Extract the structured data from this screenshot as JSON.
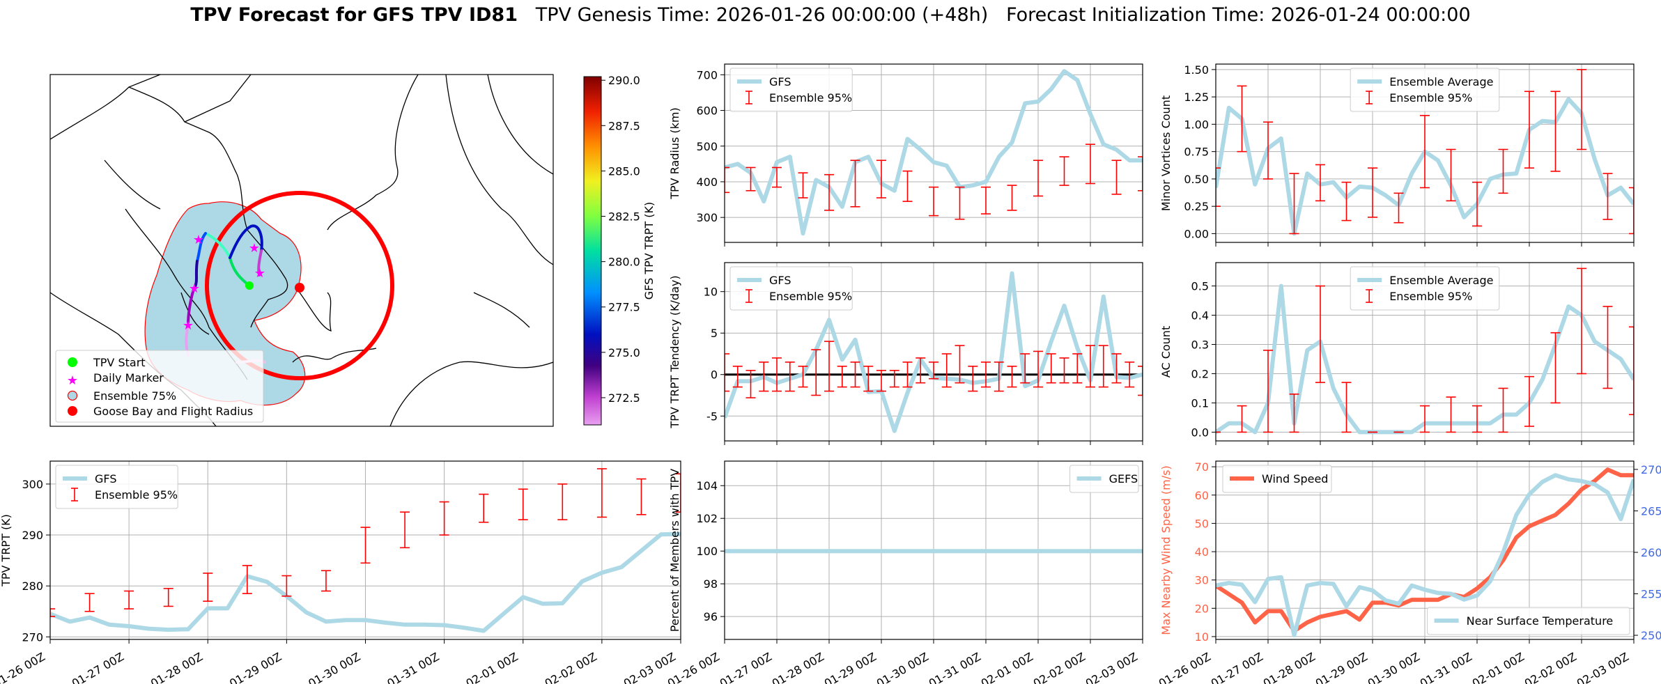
{
  "title": {
    "bold": "TPV Forecast for GFS TPV ID81",
    "genesis": "TPV Genesis Time: 2026-01-26 00:00:00 (+48h)",
    "init": "Forecast Initialization Time: 2026-01-24 00:00:00"
  },
  "colors": {
    "gfs": "#add8e6",
    "ensemble": "#ff0000",
    "wind": "#ff6347",
    "temperature_axis": "#4169e1",
    "wind_axis": "#ff6347",
    "grid": "#b0b0b0",
    "ocean": "#add8e6",
    "flight_radius": "#ff0000",
    "goose_bay": "#ff0000",
    "tpv_start": "#00ff00",
    "daily_marker": "#ff00ff"
  },
  "date_ticks": [
    "01-26 00Z",
    "01-27 00Z",
    "01-28 00Z",
    "01-29 00Z",
    "01-30 00Z",
    "01-31 00Z",
    "02-01 00Z",
    "02-02 00Z",
    "02-03 00Z"
  ],
  "map": {
    "legend": [
      "TPV Start",
      "Daily Marker",
      "Ensemble 75%",
      "Goose Bay and Flight Radius"
    ],
    "colorbar_label": "GFS TPV TRPT (K)",
    "colorbar_ticks": [
      "290.0",
      "287.5",
      "285.0",
      "282.5",
      "280.0",
      "277.5",
      "275.0",
      "272.5"
    ],
    "colorbar_range": [
      271.0,
      290.2
    ]
  },
  "chart_data": [
    {
      "type": "line",
      "name": "trpt",
      "ylabel": "TPV TRPT (K)",
      "ylim": [
        269.5,
        304.5
      ],
      "yticks": [
        270,
        280,
        290,
        300
      ],
      "x_range": [
        0,
        8
      ],
      "series": [
        {
          "name": "GFS",
          "x": [
            0,
            0.25,
            0.5,
            0.75,
            1,
            1.25,
            1.5,
            1.75,
            2,
            2.25,
            2.5,
            2.75,
            3,
            3.25,
            3.5,
            3.75,
            4,
            4.25,
            4.5,
            4.75,
            5,
            5.25,
            5.5,
            5.75,
            6,
            6.25,
            6.5,
            6.75,
            7,
            7.25,
            7.5,
            7.75,
            8
          ],
          "values": [
            274.5,
            273.0,
            273.8,
            272.4,
            272.1,
            271.6,
            271.4,
            271.5,
            275.6,
            275.6,
            281.9,
            280.8,
            278.0,
            274.8,
            273.0,
            273.3,
            273.3,
            272.8,
            272.4,
            272.4,
            272.3,
            271.8,
            271.2,
            274.5,
            277.8,
            276.5,
            276.6,
            280.9,
            282.6,
            283.7,
            286.9,
            290.1,
            290.2
          ]
        }
      ],
      "ensemble95": {
        "name": "Ensemble 95%",
        "x": [
          0,
          0.5,
          1,
          1.5,
          2,
          2.5,
          3,
          3.5,
          4,
          4.5,
          5,
          5.5,
          6,
          6.5,
          7,
          7.5,
          8
        ],
        "low": [
          274.0,
          275.0,
          275.5,
          276.0,
          277.0,
          278.5,
          278.0,
          279.0,
          284.5,
          287.5,
          290.0,
          292.5,
          293.0,
          293.0,
          293.5,
          294.0,
          294.5
        ],
        "high": [
          275.5,
          278.5,
          279.0,
          279.5,
          282.5,
          284.0,
          282.0,
          283.0,
          291.5,
          294.5,
          296.5,
          298.0,
          299.0,
          300.0,
          303.0,
          301.0,
          302.0
        ]
      }
    },
    {
      "type": "line",
      "name": "radius",
      "ylabel": "TPV Radius (km)",
      "ylim": [
        230,
        730
      ],
      "yticks": [
        300,
        400,
        500,
        600,
        700
      ],
      "x_range": [
        0,
        8
      ],
      "series": [
        {
          "name": "GFS",
          "x": [
            0,
            0.25,
            0.5,
            0.75,
            1,
            1.25,
            1.5,
            1.75,
            2,
            2.25,
            2.5,
            2.75,
            3,
            3.25,
            3.5,
            3.75,
            4,
            4.25,
            4.5,
            4.75,
            5,
            5.25,
            5.5,
            5.75,
            6,
            6.25,
            6.5,
            6.75,
            7,
            7.25,
            7.5,
            7.75,
            8
          ],
          "values": [
            440,
            450,
            425,
            345,
            455,
            470,
            255,
            405,
            385,
            330,
            455,
            470,
            395,
            375,
            520,
            490,
            455,
            445,
            385,
            390,
            400,
            470,
            510,
            620,
            625,
            660,
            710,
            685,
            590,
            505,
            490,
            460,
            460
          ]
        }
      ],
      "ensemble95": {
        "name": "Ensemble 95%",
        "x": [
          0,
          0.5,
          1,
          1.5,
          2,
          2.5,
          3,
          3.5,
          4,
          4.5,
          5,
          5.5,
          6,
          6.5,
          7,
          7.5,
          8
        ],
        "low": [
          370,
          375,
          385,
          355,
          320,
          330,
          355,
          345,
          305,
          295,
          310,
          320,
          360,
          390,
          395,
          365,
          375
        ],
        "high": [
          440,
          440,
          440,
          425,
          420,
          460,
          460,
          430,
          385,
          385,
          385,
          390,
          460,
          470,
          505,
          460,
          470
        ]
      }
    },
    {
      "type": "line",
      "name": "tendency",
      "ylabel": "TPV TRPT Tendency (K/day)",
      "ylim": [
        -8,
        13.5
      ],
      "yticks": [
        -5,
        0,
        5,
        10
      ],
      "x_range": [
        0,
        8
      ],
      "zero_line": true,
      "series": [
        {
          "name": "GFS",
          "x": [
            0,
            0.25,
            0.5,
            0.75,
            1,
            1.25,
            1.5,
            1.75,
            2,
            2.25,
            2.5,
            2.75,
            3,
            3.25,
            3.5,
            3.75,
            4,
            4.25,
            4.5,
            4.75,
            5,
            5.25,
            5.5,
            5.75,
            6,
            6.25,
            6.5,
            6.75,
            7,
            7.25,
            7.5,
            7.75,
            8
          ],
          "values": [
            -5.2,
            -0.8,
            -0.8,
            -0.3,
            -1.0,
            -0.5,
            0.0,
            3.0,
            6.6,
            1.8,
            4.2,
            -2.1,
            -2.0,
            -6.8,
            -2.2,
            1.8,
            -0.4,
            -0.5,
            -0.6,
            -1.0,
            -0.8,
            -0.5,
            12.2,
            -1.4,
            -0.7,
            4.0,
            8.3,
            3.2,
            -0.7,
            9.4,
            -0.3,
            -0.4,
            0.0
          ]
        }
      ],
      "ensemble95": {
        "name": "Ensemble 95%",
        "x": [
          0,
          0.25,
          0.5,
          0.75,
          1,
          1.25,
          1.5,
          1.75,
          2,
          2.25,
          2.5,
          2.75,
          3,
          3.25,
          3.5,
          3.75,
          4,
          4.25,
          4.5,
          4.75,
          5,
          5.25,
          5.5,
          5.75,
          6,
          6.25,
          6.5,
          6.75,
          7,
          7.25,
          7.5,
          7.75,
          8
        ],
        "low": [
          -2.0,
          -1.5,
          -2.8,
          -2.0,
          -2.0,
          -2.0,
          -1.5,
          -2.5,
          -2.0,
          -1.5,
          -1.5,
          -2.0,
          -2.0,
          -1.5,
          -1.5,
          -1.0,
          -0.5,
          -1.5,
          -1.0,
          -2.0,
          -1.5,
          -2.0,
          -1.5,
          -1.0,
          -1.5,
          -1.0,
          -1.0,
          -1.0,
          -1.5,
          -1.5,
          -1.0,
          -1.5,
          -2.5
        ],
        "high": [
          2.5,
          1.0,
          0.5,
          1.5,
          2.0,
          1.5,
          1.0,
          3.0,
          4.0,
          1.0,
          1.5,
          1.0,
          0.5,
          0.5,
          1.5,
          2.0,
          1.5,
          2.5,
          3.5,
          1.0,
          1.5,
          1.5,
          1.0,
          2.5,
          2.8,
          2.5,
          2.0,
          2.5,
          3.5,
          3.5,
          2.5,
          1.5,
          1.0
        ]
      }
    },
    {
      "type": "line",
      "name": "minor_vortices",
      "ylabel": "Minor Vortices Count",
      "ylim": [
        -0.08,
        1.55
      ],
      "yticks": [
        0,
        0.25,
        0.5,
        0.75,
        1.0,
        1.25,
        1.5
      ],
      "ytick_labels": [
        "0.00",
        "0.25",
        "0.50",
        "0.75",
        "1.00",
        "1.25",
        "1.50"
      ],
      "x_range": [
        0,
        8
      ],
      "series": [
        {
          "name": "Ensemble Average",
          "x": [
            0,
            0.25,
            0.5,
            0.75,
            1,
            1.25,
            1.5,
            1.75,
            2,
            2.25,
            2.5,
            2.75,
            3,
            3.25,
            3.5,
            3.75,
            4,
            4.25,
            4.5,
            4.75,
            5,
            5.25,
            5.5,
            5.75,
            6,
            6.25,
            6.5,
            6.75,
            7,
            7.25,
            7.5,
            7.75,
            8
          ],
          "values": [
            0.42,
            1.15,
            1.05,
            0.45,
            0.78,
            0.87,
            0.0,
            0.55,
            0.45,
            0.47,
            0.33,
            0.43,
            0.42,
            0.35,
            0.26,
            0.55,
            0.75,
            0.67,
            0.44,
            0.15,
            0.27,
            0.5,
            0.54,
            0.55,
            0.95,
            1.03,
            1.02,
            1.23,
            1.1,
            0.68,
            0.35,
            0.42,
            0.27
          ]
        }
      ],
      "ensemble95": {
        "name": "Ensemble 95%",
        "x": [
          0,
          0.5,
          1,
          1.5,
          2,
          2.5,
          3,
          3.5,
          4,
          4.5,
          5,
          5.5,
          6,
          6.5,
          7,
          7.5,
          8
        ],
        "low": [
          0.25,
          0.75,
          0.5,
          0.0,
          0.3,
          0.12,
          0.15,
          0.1,
          0.42,
          0.3,
          0.07,
          0.37,
          0.6,
          0.57,
          0.77,
          0.13,
          0.0
        ],
        "high": [
          0.6,
          1.35,
          1.02,
          0.55,
          0.63,
          0.47,
          0.6,
          0.37,
          1.08,
          0.77,
          0.47,
          0.77,
          1.3,
          1.3,
          1.5,
          0.55,
          0.42
        ]
      }
    },
    {
      "type": "line",
      "name": "ac_count",
      "ylabel": "AC Count",
      "ylim": [
        -0.03,
        0.58
      ],
      "yticks": [
        0,
        0.1,
        0.2,
        0.3,
        0.4,
        0.5
      ],
      "ytick_labels": [
        "0.0",
        "0.1",
        "0.2",
        "0.3",
        "0.4",
        "0.5"
      ],
      "x_range": [
        0,
        8
      ],
      "series": [
        {
          "name": "Ensemble Average",
          "x": [
            0,
            0.25,
            0.5,
            0.75,
            1,
            1.25,
            1.5,
            1.75,
            2,
            2.25,
            2.5,
            2.75,
            3,
            3.25,
            3.5,
            3.75,
            4,
            4.25,
            4.5,
            4.75,
            5,
            5.25,
            5.5,
            5.75,
            6,
            6.25,
            6.5,
            6.75,
            7,
            7.25,
            7.5,
            7.75,
            8
          ],
          "values": [
            0.0,
            0.03,
            0.03,
            0.0,
            0.1,
            0.5,
            0.03,
            0.28,
            0.31,
            0.15,
            0.06,
            0.0,
            0.0,
            0.0,
            0.0,
            0.0,
            0.03,
            0.03,
            0.03,
            0.03,
            0.03,
            0.03,
            0.06,
            0.06,
            0.1,
            0.18,
            0.3,
            0.43,
            0.4,
            0.31,
            0.28,
            0.25,
            0.18
          ]
        }
      ],
      "ensemble95": {
        "name": "Ensemble 95%",
        "x": [
          0,
          0.5,
          1,
          1.5,
          2,
          2.5,
          3,
          3.5,
          4,
          4.5,
          5,
          5.5,
          6,
          6.5,
          7,
          7.5,
          8
        ],
        "low": [
          0.0,
          0.0,
          0.0,
          0.0,
          0.17,
          0.0,
          0.0,
          0.0,
          0.0,
          0.0,
          0.0,
          0.0,
          0.02,
          0.1,
          0.2,
          0.15,
          0.06
        ],
        "high": [
          0.0,
          0.09,
          0.28,
          0.13,
          0.5,
          0.17,
          0.0,
          0.0,
          0.09,
          0.12,
          0.09,
          0.15,
          0.19,
          0.34,
          0.56,
          0.43,
          0.36
        ]
      }
    },
    {
      "type": "line",
      "name": "percent_members",
      "ylabel": "Percent of Members with TPV",
      "ylim": [
        94.6,
        105.5
      ],
      "yticks": [
        96,
        98,
        100,
        102,
        104
      ],
      "x_range": [
        0,
        8
      ],
      "series": [
        {
          "name": "GEFS",
          "x": [
            0,
            8
          ],
          "values": [
            100,
            100
          ]
        }
      ]
    },
    {
      "type": "line",
      "name": "wind_temp",
      "ylabel": "Max Nearby Wind Speed (m/s)",
      "ylim": [
        9,
        72
      ],
      "yticks": [
        10,
        20,
        30,
        40,
        50,
        60,
        70
      ],
      "y2label": "Near Surface Temperature (K)",
      "y2lim": [
        249.5,
        271
      ],
      "y2ticks": [
        250,
        255,
        260,
        265,
        270
      ],
      "x_range": [
        0,
        8
      ],
      "series": [
        {
          "name": "Wind Speed",
          "axis": "left",
          "x": [
            0,
            0.25,
            0.5,
            0.75,
            1,
            1.25,
            1.5,
            1.75,
            2,
            2.25,
            2.5,
            2.75,
            3,
            3.25,
            3.5,
            3.75,
            4,
            4.25,
            4.5,
            4.75,
            5,
            5.25,
            5.5,
            5.75,
            6,
            6.25,
            6.5,
            6.75,
            7,
            7.25,
            7.5,
            7.75,
            8
          ],
          "values": [
            28,
            25,
            22,
            15,
            19,
            19,
            12,
            15,
            17,
            18,
            19,
            16,
            22,
            22,
            21,
            23,
            23,
            23,
            25,
            24,
            27,
            31,
            37,
            45,
            49,
            51,
            53,
            57,
            62,
            65,
            69,
            67,
            67
          ]
        },
        {
          "name": "Near Surface Temperature",
          "axis": "right",
          "x": [
            0,
            0.25,
            0.5,
            0.75,
            1,
            1.25,
            1.5,
            1.75,
            2,
            2.25,
            2.5,
            2.75,
            3,
            3.25,
            3.5,
            3.75,
            4,
            4.25,
            4.5,
            4.75,
            5,
            5.25,
            5.5,
            5.75,
            6,
            6.25,
            6.5,
            6.75,
            7,
            7.25,
            7.5,
            7.75,
            8
          ],
          "values": [
            256,
            256.3,
            256.1,
            254,
            256.8,
            257,
            250,
            256,
            256.3,
            256.2,
            253.5,
            255.8,
            255.4,
            254.2,
            253.8,
            256,
            255.5,
            255.1,
            255,
            254.3,
            254.8,
            256.5,
            260,
            264.5,
            267,
            268.5,
            269.3,
            268.8,
            268.6,
            268.2,
            267.2,
            264,
            268.8
          ]
        }
      ]
    }
  ]
}
